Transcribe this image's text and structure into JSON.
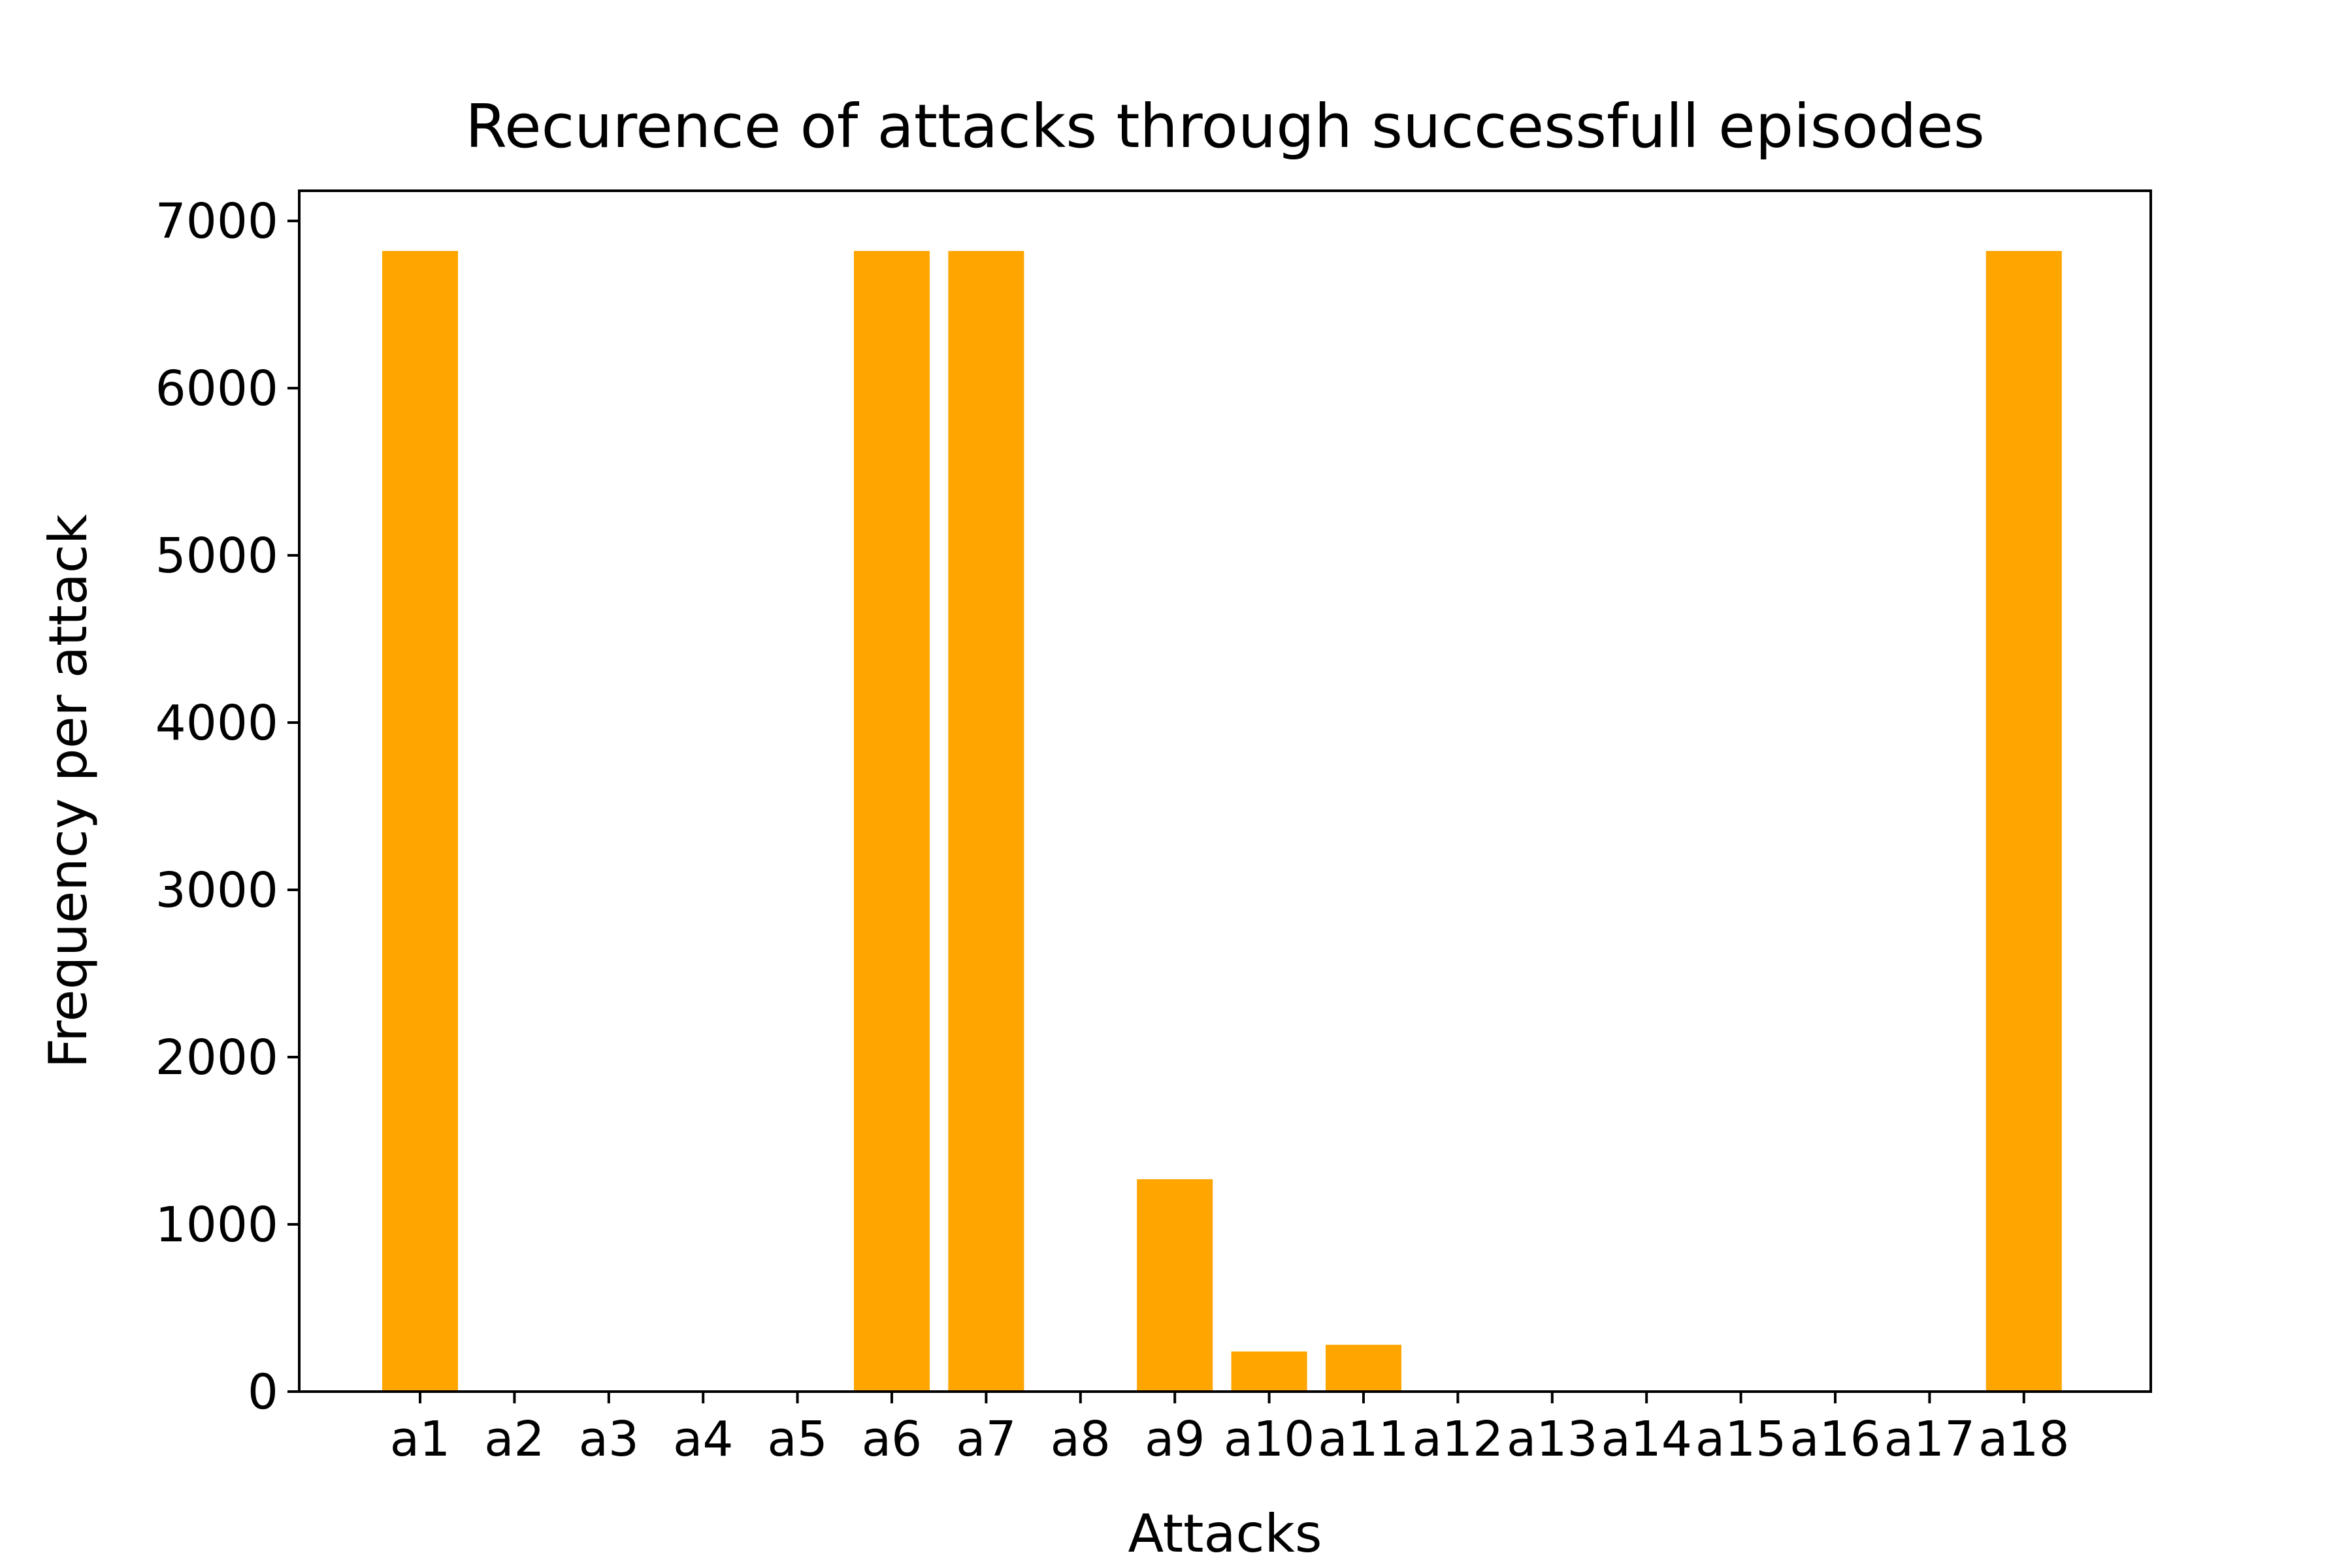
{
  "chart_data": {
    "type": "bar",
    "title": "Recurence of attacks through successfull episodes",
    "xlabel": "Attacks",
    "ylabel": "Frequency per attack",
    "categories": [
      "a1",
      "a2",
      "a3",
      "a4",
      "a5",
      "a6",
      "a7",
      "a8",
      "a9",
      "a10",
      "a11",
      "a12",
      "a13",
      "a14",
      "a15",
      "a16",
      "a17",
      "a18"
    ],
    "values": [
      6820,
      0,
      0,
      0,
      0,
      6820,
      6820,
      0,
      1270,
      240,
      280,
      0,
      0,
      0,
      0,
      0,
      0,
      6820
    ],
    "ylim": [
      0,
      7180
    ],
    "yticks": [
      0,
      1000,
      2000,
      3000,
      4000,
      5000,
      6000,
      7000
    ],
    "bar_color": "#ffa500",
    "grid": false,
    "legend": "none"
  }
}
